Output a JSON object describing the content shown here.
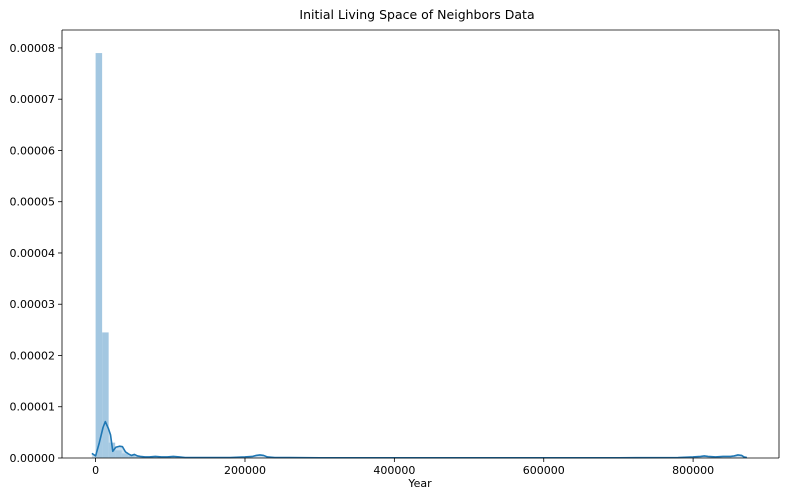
{
  "chart_data": {
    "type": "histogram",
    "title": "Initial Living Space of Neighbors Data",
    "xlabel": "Year",
    "ylabel": "",
    "xlim": [
      -45000,
      915000
    ],
    "ylim": [
      0,
      8.35e-05
    ],
    "xticks": [
      0,
      200000,
      400000,
      600000,
      800000
    ],
    "xtick_labels": [
      "0",
      "200000",
      "400000",
      "600000",
      "800000"
    ],
    "yticks": [
      0,
      1e-05,
      2e-05,
      3e-05,
      4e-05,
      5e-05,
      6e-05,
      7e-05,
      8e-05
    ],
    "ytick_labels": [
      "0.00000",
      "0.00001",
      "0.00002",
      "0.00003",
      "0.00004",
      "0.00005",
      "0.00006",
      "0.00007",
      "0.00008"
    ],
    "grid": false,
    "histogram": {
      "color": "#9ec4df",
      "bins": [
        {
          "x0": 0,
          "x1": 8730,
          "value": 7.9e-05
        },
        {
          "x0": 8730,
          "x1": 17460,
          "value": 2.45e-05
        },
        {
          "x0": 17460,
          "x1": 26190,
          "value": 3e-06
        },
        {
          "x0": 26190,
          "x1": 34920,
          "value": 1.5e-06
        },
        {
          "x0": 34920,
          "x1": 43650,
          "value": 9e-07
        },
        {
          "x0": 43650,
          "x1": 52380,
          "value": 5e-07
        },
        {
          "x0": 52380,
          "x1": 61110,
          "value": 3e-07
        },
        {
          "x0": 61110,
          "x1": 69840,
          "value": 2e-07
        },
        {
          "x0": 69840,
          "x1": 78570,
          "value": 1.5e-07
        },
        {
          "x0": 78570,
          "x1": 87300,
          "value": 1e-07
        },
        {
          "x0": 87300,
          "x1": 96030,
          "value": 8e-08
        },
        {
          "x0": 96030,
          "x1": 104760,
          "value": 6e-08
        }
      ]
    },
    "kde": {
      "color": "#1f77b4",
      "fill_color": "#a8cbe4",
      "x": [
        -5000,
        0,
        5000,
        10000,
        13000,
        17000,
        20000,
        23000,
        27000,
        32000,
        36000,
        40000,
        44000,
        48000,
        52000,
        56000,
        60000,
        66000,
        72000,
        80000,
        88000,
        96000,
        104000,
        112000,
        120000,
        130000,
        145000,
        160000,
        180000,
        200000,
        210000,
        215000,
        220000,
        225000,
        230000,
        240000,
        260000,
        300000,
        400000,
        500000,
        600000,
        700000,
        780000,
        800000,
        810000,
        815000,
        820000,
        830000,
        840000,
        850000,
        855000,
        860000,
        865000,
        868000,
        872000
      ],
      "y": [
        9e-07,
        4e-07,
        3e-06,
        6e-06,
        7.1e-06,
        5.8e-06,
        4.5e-06,
        1.3e-06,
        2.1e-06,
        2.3e-06,
        2.2e-06,
        1.2e-06,
        8e-07,
        5e-07,
        7e-07,
        4e-07,
        3e-07,
        2e-07,
        2e-07,
        3e-07,
        2e-07,
        2e-07,
        3e-07,
        2e-07,
        1e-07,
        1e-07,
        1e-07,
        1e-07,
        1e-07,
        2e-07,
        3e-07,
        5e-07,
        6e-07,
        5e-07,
        2e-07,
        1e-07,
        1e-07,
        5e-08,
        5e-08,
        5e-08,
        5e-08,
        5e-08,
        1e-07,
        2e-07,
        3e-07,
        4e-07,
        3e-07,
        2e-07,
        3e-07,
        3e-07,
        4e-07,
        6e-07,
        5e-07,
        2e-07,
        1e-07
      ]
    }
  }
}
